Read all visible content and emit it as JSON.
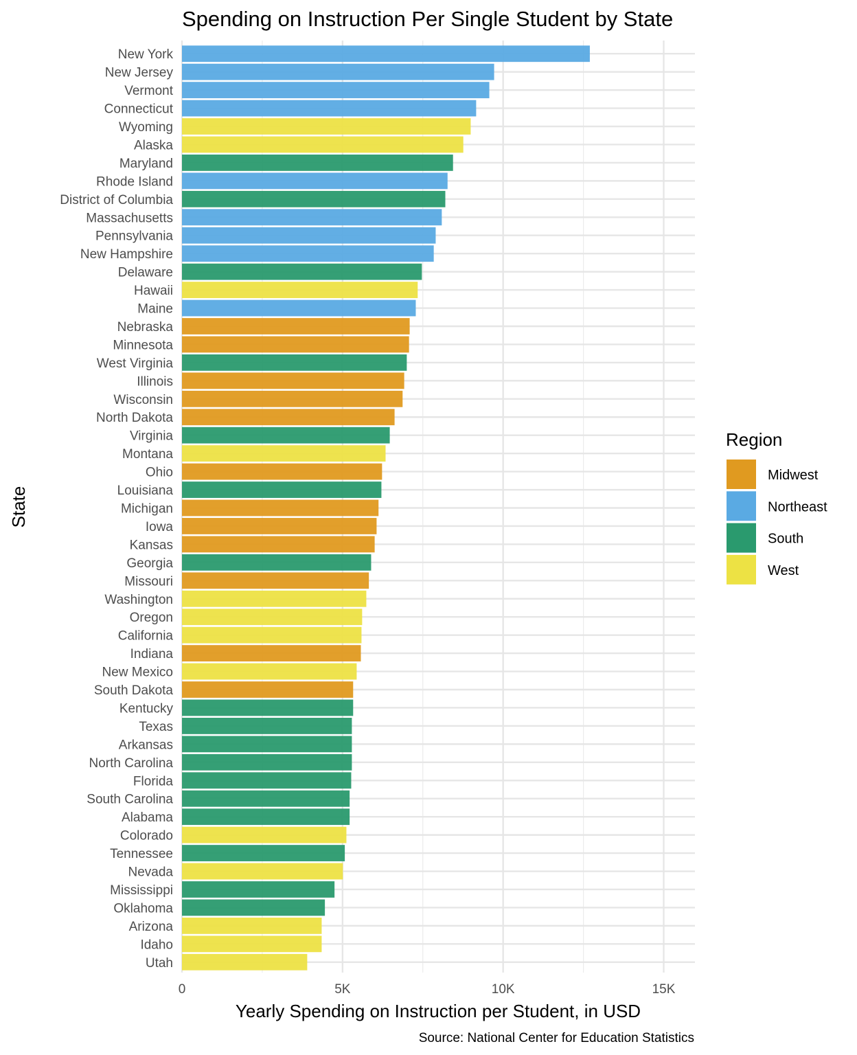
{
  "chart_data": {
    "type": "bar",
    "orientation": "horizontal",
    "title": "Spending on Instruction Per Single Student by State",
    "xlabel": "Yearly Spending on Instruction per Student, in USD",
    "ylabel": "State",
    "caption": "Source: National Center for Education Statistics",
    "xlim": [
      0,
      16000
    ],
    "x_ticks": [
      0,
      5000,
      10000,
      15000
    ],
    "x_tick_labels": [
      "0",
      "5K",
      "10K",
      "15K"
    ],
    "grid": true,
    "legend": {
      "title": "Region",
      "placement": "right",
      "entries": [
        {
          "name": "Midwest",
          "color": "#E09A20"
        },
        {
          "name": "Northeast",
          "color": "#5AAAE3"
        },
        {
          "name": "South",
          "color": "#2A9A6E"
        },
        {
          "name": "West",
          "color": "#EDE244"
        }
      ]
    },
    "bars": [
      {
        "state": "New York",
        "region": "Northeast",
        "value": 12700
      },
      {
        "state": "New Jersey",
        "region": "Northeast",
        "value": 9720
      },
      {
        "state": "Vermont",
        "region": "Northeast",
        "value": 9570
      },
      {
        "state": "Connecticut",
        "region": "Northeast",
        "value": 9160
      },
      {
        "state": "Wyoming",
        "region": "West",
        "value": 8990
      },
      {
        "state": "Alaska",
        "region": "West",
        "value": 8760
      },
      {
        "state": "Maryland",
        "region": "South",
        "value": 8440
      },
      {
        "state": "Rhode Island",
        "region": "Northeast",
        "value": 8270
      },
      {
        "state": "District of Columbia",
        "region": "South",
        "value": 8200
      },
      {
        "state": "Massachusetts",
        "region": "Northeast",
        "value": 8090
      },
      {
        "state": "Pennsylvania",
        "region": "Northeast",
        "value": 7900
      },
      {
        "state": "New Hampshire",
        "region": "Northeast",
        "value": 7840
      },
      {
        "state": "Delaware",
        "region": "South",
        "value": 7470
      },
      {
        "state": "Hawaii",
        "region": "West",
        "value": 7340
      },
      {
        "state": "Maine",
        "region": "Northeast",
        "value": 7280
      },
      {
        "state": "Nebraska",
        "region": "Midwest",
        "value": 7090
      },
      {
        "state": "Minnesota",
        "region": "Midwest",
        "value": 7070
      },
      {
        "state": "West Virginia",
        "region": "South",
        "value": 7000
      },
      {
        "state": "Illinois",
        "region": "Midwest",
        "value": 6920
      },
      {
        "state": "Wisconsin",
        "region": "Midwest",
        "value": 6870
      },
      {
        "state": "North Dakota",
        "region": "Midwest",
        "value": 6620
      },
      {
        "state": "Virginia",
        "region": "South",
        "value": 6470
      },
      {
        "state": "Montana",
        "region": "West",
        "value": 6340
      },
      {
        "state": "Ohio",
        "region": "Midwest",
        "value": 6230
      },
      {
        "state": "Louisiana",
        "region": "South",
        "value": 6210
      },
      {
        "state": "Michigan",
        "region": "Midwest",
        "value": 6120
      },
      {
        "state": "Iowa",
        "region": "Midwest",
        "value": 6060
      },
      {
        "state": "Kansas",
        "region": "Midwest",
        "value": 6000
      },
      {
        "state": "Georgia",
        "region": "South",
        "value": 5890
      },
      {
        "state": "Missouri",
        "region": "Midwest",
        "value": 5820
      },
      {
        "state": "Washington",
        "region": "West",
        "value": 5740
      },
      {
        "state": "Oregon",
        "region": "West",
        "value": 5610
      },
      {
        "state": "California",
        "region": "West",
        "value": 5590
      },
      {
        "state": "Indiana",
        "region": "Midwest",
        "value": 5570
      },
      {
        "state": "New Mexico",
        "region": "West",
        "value": 5440
      },
      {
        "state": "South Dakota",
        "region": "Midwest",
        "value": 5330
      },
      {
        "state": "Kentucky",
        "region": "South",
        "value": 5330
      },
      {
        "state": "Texas",
        "region": "South",
        "value": 5290
      },
      {
        "state": "Arkansas",
        "region": "South",
        "value": 5290
      },
      {
        "state": "North Carolina",
        "region": "South",
        "value": 5290
      },
      {
        "state": "Florida",
        "region": "South",
        "value": 5270
      },
      {
        "state": "South Carolina",
        "region": "South",
        "value": 5220
      },
      {
        "state": "Alabama",
        "region": "South",
        "value": 5220
      },
      {
        "state": "Colorado",
        "region": "West",
        "value": 5120
      },
      {
        "state": "Tennessee",
        "region": "South",
        "value": 5070
      },
      {
        "state": "Nevada",
        "region": "West",
        "value": 5010
      },
      {
        "state": "Mississippi",
        "region": "South",
        "value": 4750
      },
      {
        "state": "Oklahoma",
        "region": "South",
        "value": 4450
      },
      {
        "state": "Arizona",
        "region": "West",
        "value": 4350
      },
      {
        "state": "Idaho",
        "region": "West",
        "value": 4350
      },
      {
        "state": "Utah",
        "region": "West",
        "value": 3900
      }
    ]
  }
}
